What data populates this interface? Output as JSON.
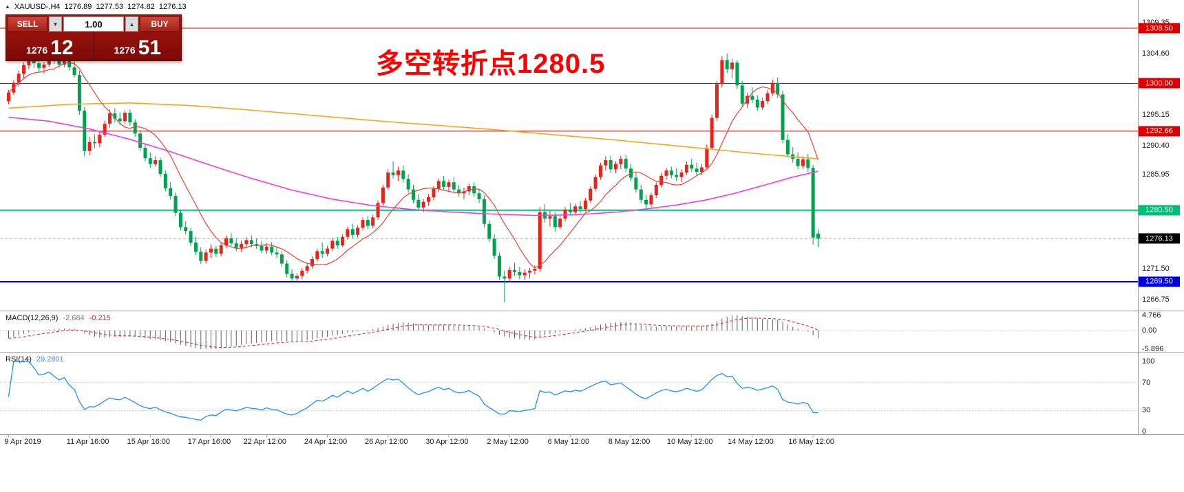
{
  "header": {
    "symbol": "XAUUSD-,H4",
    "open": "1276.89",
    "high": "1277.53",
    "low": "1274.82",
    "close": "1276.13"
  },
  "icons": {
    "oneclick_toggle": "▲",
    "volume_down": "▼",
    "volume_up": "▲"
  },
  "trade_panel": {
    "sell_label": "SELL",
    "buy_label": "BUY",
    "volume": "1.00",
    "bid_small": "1276",
    "bid_big": "12",
    "ask_small": "1276",
    "ask_big": "51"
  },
  "annotation": {
    "text": "多空转折点1280.5",
    "color": "#ff0000"
  },
  "chart_data": {
    "type": "candlestick",
    "symbol": "XAUUSD-",
    "timeframe": "H4",
    "colors": {
      "up": "#e8231a",
      "down": "#00a24f",
      "ma_slow": "#f2a71e",
      "ma_medium": "#ea3fe3",
      "ma_fast": "#e84338",
      "macd_hist": "#5f5f5f",
      "macd_signal": "#e02020",
      "rsi_line": "#1e90ff",
      "separator": "#9a9a9a"
    },
    "price_ticks": [
      {
        "label": "1309.35",
        "price": 1309.35
      },
      {
        "label": "1304.60",
        "price": 1304.6
      },
      {
        "label": "1295.15",
        "price": 1295.15
      },
      {
        "label": "1290.40",
        "price": 1290.4
      },
      {
        "label": "1285.95",
        "price": 1285.95
      },
      {
        "label": "1271.50",
        "price": 1271.5
      },
      {
        "label": "1266.75",
        "price": 1266.75
      }
    ],
    "price_badges": [
      {
        "label": "1308.50",
        "price": 1308.5,
        "bg": "#dd0000",
        "fg": "#ffffff"
      },
      {
        "label": "1300.00",
        "price": 1300.0,
        "bg": "#dd0000",
        "fg": "#ffffff"
      },
      {
        "label": "1292.66",
        "price": 1292.66,
        "bg": "#dd0000",
        "fg": "#ffffff"
      },
      {
        "label": "1280.50",
        "price": 1280.5,
        "bg": "#00bd77",
        "fg": "#ffffff"
      },
      {
        "label": "1276.13",
        "price": 1276.13,
        "bg": "#000000",
        "fg": "#ffffff"
      },
      {
        "label": "1269.50",
        "price": 1269.5,
        "bg": "#0000dd",
        "fg": "#ffffff"
      }
    ],
    "levels": [
      {
        "price": 1308.5,
        "color": "#dd0000",
        "width": 1,
        "dash": false
      },
      {
        "price": 1300.0,
        "color": "#dd0000",
        "width": 1,
        "dash": false
      },
      {
        "price": 1292.66,
        "color": "#dd0000",
        "width": 1,
        "dash": false
      },
      {
        "price": 1280.5,
        "color": "#00cc80",
        "width": 2,
        "dash": false
      },
      {
        "price": 1276.13,
        "color": "#b0b0b0",
        "width": 1,
        "dash": true
      },
      {
        "price": 1269.5,
        "color": "#0000ee",
        "width": 2,
        "dash": false
      }
    ],
    "time_axis": [
      {
        "text": "9 Apr 2019",
        "bar": 0
      },
      {
        "text": "11 Apr 16:00",
        "bar": 16
      },
      {
        "text": "15 Apr 16:00",
        "bar": 28
      },
      {
        "text": "17 Apr 16:00",
        "bar": 40
      },
      {
        "text": "22 Apr 12:00",
        "bar": 51
      },
      {
        "text": "24 Apr 12:00",
        "bar": 63
      },
      {
        "text": "26 Apr 12:00",
        "bar": 75
      },
      {
        "text": "30 Apr 12:00",
        "bar": 87
      },
      {
        "text": "2 May 12:00",
        "bar": 99
      },
      {
        "text": "6 May 12:00",
        "bar": 111
      },
      {
        "text": "8 May 12:00",
        "bar": 123
      },
      {
        "text": "10 May 12:00",
        "bar": 135
      },
      {
        "text": "14 May 12:00",
        "bar": 147
      },
      {
        "text": "16 May 12:00",
        "bar": 159
      }
    ],
    "moving_averages": {
      "slow": {
        "color": "#f2a71e",
        "points": [
          [
            0,
            1296.2
          ],
          [
            12,
            1296.8
          ],
          [
            24,
            1297.0
          ],
          [
            36,
            1296.6
          ],
          [
            48,
            1295.9
          ],
          [
            60,
            1295.1
          ],
          [
            72,
            1294.3
          ],
          [
            84,
            1293.6
          ],
          [
            96,
            1292.9
          ],
          [
            108,
            1292.1
          ],
          [
            120,
            1291.3
          ],
          [
            132,
            1290.4
          ],
          [
            140,
            1289.8
          ],
          [
            148,
            1289.2
          ],
          [
            154,
            1288.8
          ],
          [
            160,
            1288.4
          ]
        ]
      },
      "medium": {
        "color": "#ea3fe3",
        "points": [
          [
            0,
            1294.8
          ],
          [
            8,
            1294.2
          ],
          [
            16,
            1293.0
          ],
          [
            24,
            1291.4
          ],
          [
            32,
            1289.5
          ],
          [
            40,
            1287.4
          ],
          [
            48,
            1285.4
          ],
          [
            56,
            1283.6
          ],
          [
            64,
            1282.2
          ],
          [
            72,
            1281.2
          ],
          [
            80,
            1280.6
          ],
          [
            88,
            1280.2
          ],
          [
            96,
            1279.9
          ],
          [
            104,
            1279.7
          ],
          [
            112,
            1279.8
          ],
          [
            120,
            1280.2
          ],
          [
            126,
            1280.7
          ],
          [
            132,
            1281.3
          ],
          [
            138,
            1282.1
          ],
          [
            144,
            1283.2
          ],
          [
            150,
            1284.5
          ],
          [
            155,
            1285.6
          ],
          [
            160,
            1286.5
          ]
        ]
      },
      "fast": {
        "color": "#e84338",
        "type": "sma_close",
        "period": 10
      }
    },
    "macd": {
      "label": "MACD(12,26,9)",
      "value_main": "-2.684",
      "value_signal": "-0.215",
      "params": [
        12,
        26,
        9
      ],
      "scale_labels": [
        "4.766",
        "0.00",
        "-5.896"
      ],
      "scale_max": 4.766,
      "scale_min": -5.896
    },
    "rsi": {
      "label": "RSI(14)",
      "value": "29.2801",
      "period": 14,
      "levels": [
        100,
        70,
        30,
        0
      ],
      "dashed_levels": [
        70,
        30
      ]
    },
    "candles": [
      [
        1297.3,
        1299.0,
        1296.8,
        1298.6
      ],
      [
        1298.6,
        1300.5,
        1298.2,
        1300.1
      ],
      [
        1300.1,
        1302.0,
        1299.6,
        1301.5
      ],
      [
        1301.5,
        1303.2,
        1300.8,
        1302.8
      ],
      [
        1302.8,
        1304.4,
        1302.2,
        1303.6
      ],
      [
        1303.6,
        1304.2,
        1302.4,
        1303.1
      ],
      [
        1303.1,
        1304.0,
        1301.8,
        1302.4
      ],
      [
        1302.4,
        1303.3,
        1301.5,
        1302.9
      ],
      [
        1302.9,
        1304.6,
        1302.5,
        1304.1
      ],
      [
        1304.1,
        1304.8,
        1303.0,
        1303.5
      ],
      [
        1303.5,
        1304.3,
        1302.4,
        1302.9
      ],
      [
        1302.9,
        1304.6,
        1302.5,
        1304.2
      ],
      [
        1304.2,
        1304.6,
        1302.0,
        1302.5
      ],
      [
        1302.5,
        1303.4,
        1300.9,
        1301.3
      ],
      [
        1301.3,
        1302.0,
        1295.2,
        1295.8
      ],
      [
        1295.8,
        1296.4,
        1288.8,
        1289.6
      ],
      [
        1289.6,
        1291.8,
        1288.9,
        1291.0
      ],
      [
        1291.0,
        1292.2,
        1290.0,
        1290.8
      ],
      [
        1290.8,
        1292.6,
        1290.2,
        1292.1
      ],
      [
        1292.1,
        1294.3,
        1291.8,
        1293.8
      ],
      [
        1293.8,
        1296.0,
        1293.2,
        1295.4
      ],
      [
        1295.4,
        1296.2,
        1294.0,
        1294.6
      ],
      [
        1294.6,
        1295.5,
        1293.6,
        1294.2
      ],
      [
        1294.2,
        1295.9,
        1293.8,
        1295.5
      ],
      [
        1295.5,
        1296.0,
        1293.5,
        1294.0
      ],
      [
        1294.0,
        1294.5,
        1291.8,
        1292.3
      ],
      [
        1292.3,
        1292.8,
        1289.6,
        1290.1
      ],
      [
        1290.1,
        1290.8,
        1288.0,
        1288.5
      ],
      [
        1288.5,
        1289.4,
        1287.0,
        1287.6
      ],
      [
        1287.6,
        1288.8,
        1287.2,
        1288.2
      ],
      [
        1288.2,
        1288.6,
        1285.6,
        1286.1
      ],
      [
        1286.1,
        1286.6,
        1283.4,
        1283.9
      ],
      [
        1283.9,
        1284.8,
        1282.2,
        1282.7
      ],
      [
        1282.7,
        1283.2,
        1279.6,
        1280.1
      ],
      [
        1280.1,
        1280.6,
        1277.4,
        1277.9
      ],
      [
        1277.9,
        1278.8,
        1276.8,
        1277.3
      ],
      [
        1277.3,
        1277.8,
        1275.0,
        1275.5
      ],
      [
        1275.5,
        1276.4,
        1273.6,
        1274.1
      ],
      [
        1274.1,
        1274.8,
        1272.2,
        1272.7
      ],
      [
        1272.7,
        1274.5,
        1272.3,
        1274.0
      ],
      [
        1274.0,
        1275.2,
        1273.2,
        1274.6
      ],
      [
        1274.6,
        1275.0,
        1273.3,
        1273.8
      ],
      [
        1273.8,
        1275.6,
        1273.4,
        1275.1
      ],
      [
        1275.1,
        1276.6,
        1274.7,
        1276.2
      ],
      [
        1276.2,
        1277.0,
        1275.0,
        1275.4
      ],
      [
        1275.4,
        1276.2,
        1274.2,
        1274.7
      ],
      [
        1274.7,
        1275.8,
        1274.1,
        1275.3
      ],
      [
        1275.3,
        1276.4,
        1274.8,
        1275.9
      ],
      [
        1275.9,
        1276.6,
        1274.8,
        1275.3
      ],
      [
        1275.3,
        1276.2,
        1274.6,
        1275.0
      ],
      [
        1275.0,
        1275.8,
        1273.9,
        1274.3
      ],
      [
        1274.3,
        1275.4,
        1273.8,
        1274.9
      ],
      [
        1274.9,
        1275.6,
        1273.6,
        1274.0
      ],
      [
        1274.0,
        1274.8,
        1273.2,
        1273.7
      ],
      [
        1273.7,
        1274.2,
        1271.8,
        1272.3
      ],
      [
        1272.3,
        1272.8,
        1270.2,
        1270.7
      ],
      [
        1270.7,
        1271.4,
        1269.6,
        1270.0
      ],
      [
        1270.0,
        1270.8,
        1269.5,
        1270.4
      ],
      [
        1270.4,
        1271.6,
        1269.9,
        1271.2
      ],
      [
        1271.2,
        1272.4,
        1270.8,
        1271.9
      ],
      [
        1271.9,
        1273.4,
        1271.5,
        1273.0
      ],
      [
        1273.0,
        1274.6,
        1272.6,
        1274.2
      ],
      [
        1274.2,
        1275.5,
        1273.2,
        1273.8
      ],
      [
        1273.8,
        1275.0,
        1273.4,
        1274.6
      ],
      [
        1274.6,
        1276.2,
        1274.2,
        1275.8
      ],
      [
        1275.8,
        1276.4,
        1274.6,
        1275.1
      ],
      [
        1275.1,
        1276.8,
        1274.8,
        1276.4
      ],
      [
        1276.4,
        1278.0,
        1276.0,
        1277.6
      ],
      [
        1277.6,
        1278.4,
        1276.2,
        1276.7
      ],
      [
        1276.7,
        1278.2,
        1276.3,
        1277.8
      ],
      [
        1277.8,
        1279.4,
        1277.4,
        1279.0
      ],
      [
        1279.0,
        1279.6,
        1277.6,
        1278.1
      ],
      [
        1278.1,
        1279.8,
        1277.7,
        1279.4
      ],
      [
        1279.4,
        1282.0,
        1279.0,
        1281.6
      ],
      [
        1281.6,
        1284.4,
        1281.2,
        1284.0
      ],
      [
        1284.0,
        1286.8,
        1283.6,
        1286.3
      ],
      [
        1286.3,
        1288.0,
        1285.4,
        1285.9
      ],
      [
        1285.9,
        1287.2,
        1285.0,
        1286.6
      ],
      [
        1286.6,
        1287.4,
        1284.8,
        1285.3
      ],
      [
        1285.3,
        1286.0,
        1283.2,
        1283.7
      ],
      [
        1283.7,
        1284.4,
        1281.6,
        1282.1
      ],
      [
        1282.1,
        1283.0,
        1280.4,
        1280.9
      ],
      [
        1280.9,
        1282.2,
        1280.2,
        1281.8
      ],
      [
        1281.8,
        1283.0,
        1281.2,
        1282.5
      ],
      [
        1282.5,
        1284.2,
        1282.0,
        1283.8
      ],
      [
        1283.8,
        1285.4,
        1283.3,
        1285.0
      ],
      [
        1285.0,
        1285.8,
        1283.6,
        1284.1
      ],
      [
        1284.1,
        1285.2,
        1283.4,
        1284.8
      ],
      [
        1284.8,
        1285.6,
        1283.2,
        1283.7
      ],
      [
        1283.7,
        1284.4,
        1282.6,
        1283.1
      ],
      [
        1283.1,
        1284.0,
        1282.2,
        1283.4
      ],
      [
        1283.4,
        1284.6,
        1282.8,
        1284.2
      ],
      [
        1284.2,
        1284.8,
        1282.6,
        1283.1
      ],
      [
        1283.1,
        1283.8,
        1281.6,
        1282.2
      ],
      [
        1282.2,
        1282.8,
        1277.8,
        1278.4
      ],
      [
        1278.4,
        1279.0,
        1275.6,
        1276.1
      ],
      [
        1276.1,
        1276.8,
        1273.0,
        1273.5
      ],
      [
        1273.5,
        1274.0,
        1269.8,
        1270.3
      ],
      [
        1270.3,
        1271.2,
        1266.3,
        1270.0
      ],
      [
        1270.0,
        1271.8,
        1269.4,
        1271.3
      ],
      [
        1271.3,
        1272.4,
        1270.4,
        1271.0
      ],
      [
        1271.0,
        1271.8,
        1269.9,
        1270.5
      ],
      [
        1270.5,
        1271.4,
        1269.8,
        1270.9
      ],
      [
        1270.9,
        1271.6,
        1270.0,
        1271.2
      ],
      [
        1271.2,
        1272.0,
        1270.6,
        1271.5
      ],
      [
        1271.5,
        1281.0,
        1271.0,
        1280.2
      ],
      [
        1280.2,
        1281.4,
        1278.6,
        1279.2
      ],
      [
        1279.2,
        1280.4,
        1278.0,
        1279.6
      ],
      [
        1279.6,
        1280.2,
        1277.2,
        1277.9
      ],
      [
        1277.9,
        1279.6,
        1277.5,
        1279.2
      ],
      [
        1279.2,
        1281.0,
        1278.8,
        1280.6
      ],
      [
        1280.6,
        1281.6,
        1279.7,
        1280.2
      ],
      [
        1280.2,
        1281.5,
        1279.8,
        1281.1
      ],
      [
        1281.1,
        1281.9,
        1280.1,
        1280.7
      ],
      [
        1280.7,
        1282.4,
        1280.3,
        1282.0
      ],
      [
        1282.0,
        1284.2,
        1281.6,
        1283.8
      ],
      [
        1283.8,
        1286.0,
        1283.4,
        1285.6
      ],
      [
        1285.6,
        1287.8,
        1285.2,
        1287.4
      ],
      [
        1287.4,
        1288.8,
        1286.6,
        1288.2
      ],
      [
        1288.2,
        1288.9,
        1286.2,
        1286.8
      ],
      [
        1286.8,
        1288.0,
        1286.2,
        1287.6
      ],
      [
        1287.6,
        1288.9,
        1286.8,
        1288.4
      ],
      [
        1288.4,
        1289.0,
        1286.4,
        1286.9
      ],
      [
        1286.9,
        1287.6,
        1285.0,
        1285.5
      ],
      [
        1285.5,
        1286.2,
        1283.2,
        1283.7
      ],
      [
        1283.7,
        1284.4,
        1281.6,
        1282.1
      ],
      [
        1282.1,
        1282.8,
        1280.8,
        1281.4
      ],
      [
        1281.4,
        1283.2,
        1281.0,
        1282.8
      ],
      [
        1282.8,
        1284.8,
        1282.4,
        1284.4
      ],
      [
        1284.4,
        1286.2,
        1284.0,
        1285.8
      ],
      [
        1285.8,
        1287.0,
        1285.2,
        1286.6
      ],
      [
        1286.6,
        1287.2,
        1285.4,
        1285.9
      ],
      [
        1285.9,
        1287.0,
        1285.0,
        1285.6
      ],
      [
        1285.6,
        1286.8,
        1284.8,
        1286.3
      ],
      [
        1286.3,
        1288.0,
        1285.9,
        1287.5
      ],
      [
        1287.5,
        1288.4,
        1286.4,
        1286.9
      ],
      [
        1286.9,
        1287.8,
        1285.8,
        1286.4
      ],
      [
        1286.4,
        1287.6,
        1285.9,
        1287.1
      ],
      [
        1287.1,
        1290.6,
        1286.7,
        1290.1
      ],
      [
        1290.1,
        1295.2,
        1289.8,
        1294.7
      ],
      [
        1294.7,
        1300.4,
        1294.2,
        1299.9
      ],
      [
        1299.9,
        1304.2,
        1299.4,
        1303.6
      ],
      [
        1303.6,
        1304.6,
        1301.6,
        1302.2
      ],
      [
        1302.2,
        1303.8,
        1300.8,
        1303.2
      ],
      [
        1303.2,
        1303.6,
        1299.2,
        1299.7
      ],
      [
        1299.7,
        1300.4,
        1296.4,
        1296.9
      ],
      [
        1296.9,
        1298.6,
        1296.2,
        1298.1
      ],
      [
        1298.1,
        1299.4,
        1297.0,
        1297.5
      ],
      [
        1297.5,
        1298.2,
        1295.8,
        1296.3
      ],
      [
        1296.3,
        1297.8,
        1295.9,
        1297.3
      ],
      [
        1297.3,
        1299.0,
        1296.8,
        1298.5
      ],
      [
        1298.5,
        1300.6,
        1298.1,
        1300.1
      ],
      [
        1300.1,
        1300.9,
        1297.8,
        1298.3
      ],
      [
        1298.3,
        1298.9,
        1290.8,
        1291.3
      ],
      [
        1291.3,
        1292.2,
        1288.6,
        1289.1
      ],
      [
        1289.1,
        1290.2,
        1287.8,
        1288.4
      ],
      [
        1288.4,
        1289.4,
        1286.8,
        1287.3
      ],
      [
        1287.3,
        1288.8,
        1286.9,
        1288.3
      ],
      [
        1288.3,
        1289.2,
        1286.4,
        1287.0
      ],
      [
        1287.0,
        1287.5,
        1275.2,
        1276.3
      ],
      [
        1276.89,
        1277.53,
        1274.82,
        1276.13
      ]
    ]
  }
}
